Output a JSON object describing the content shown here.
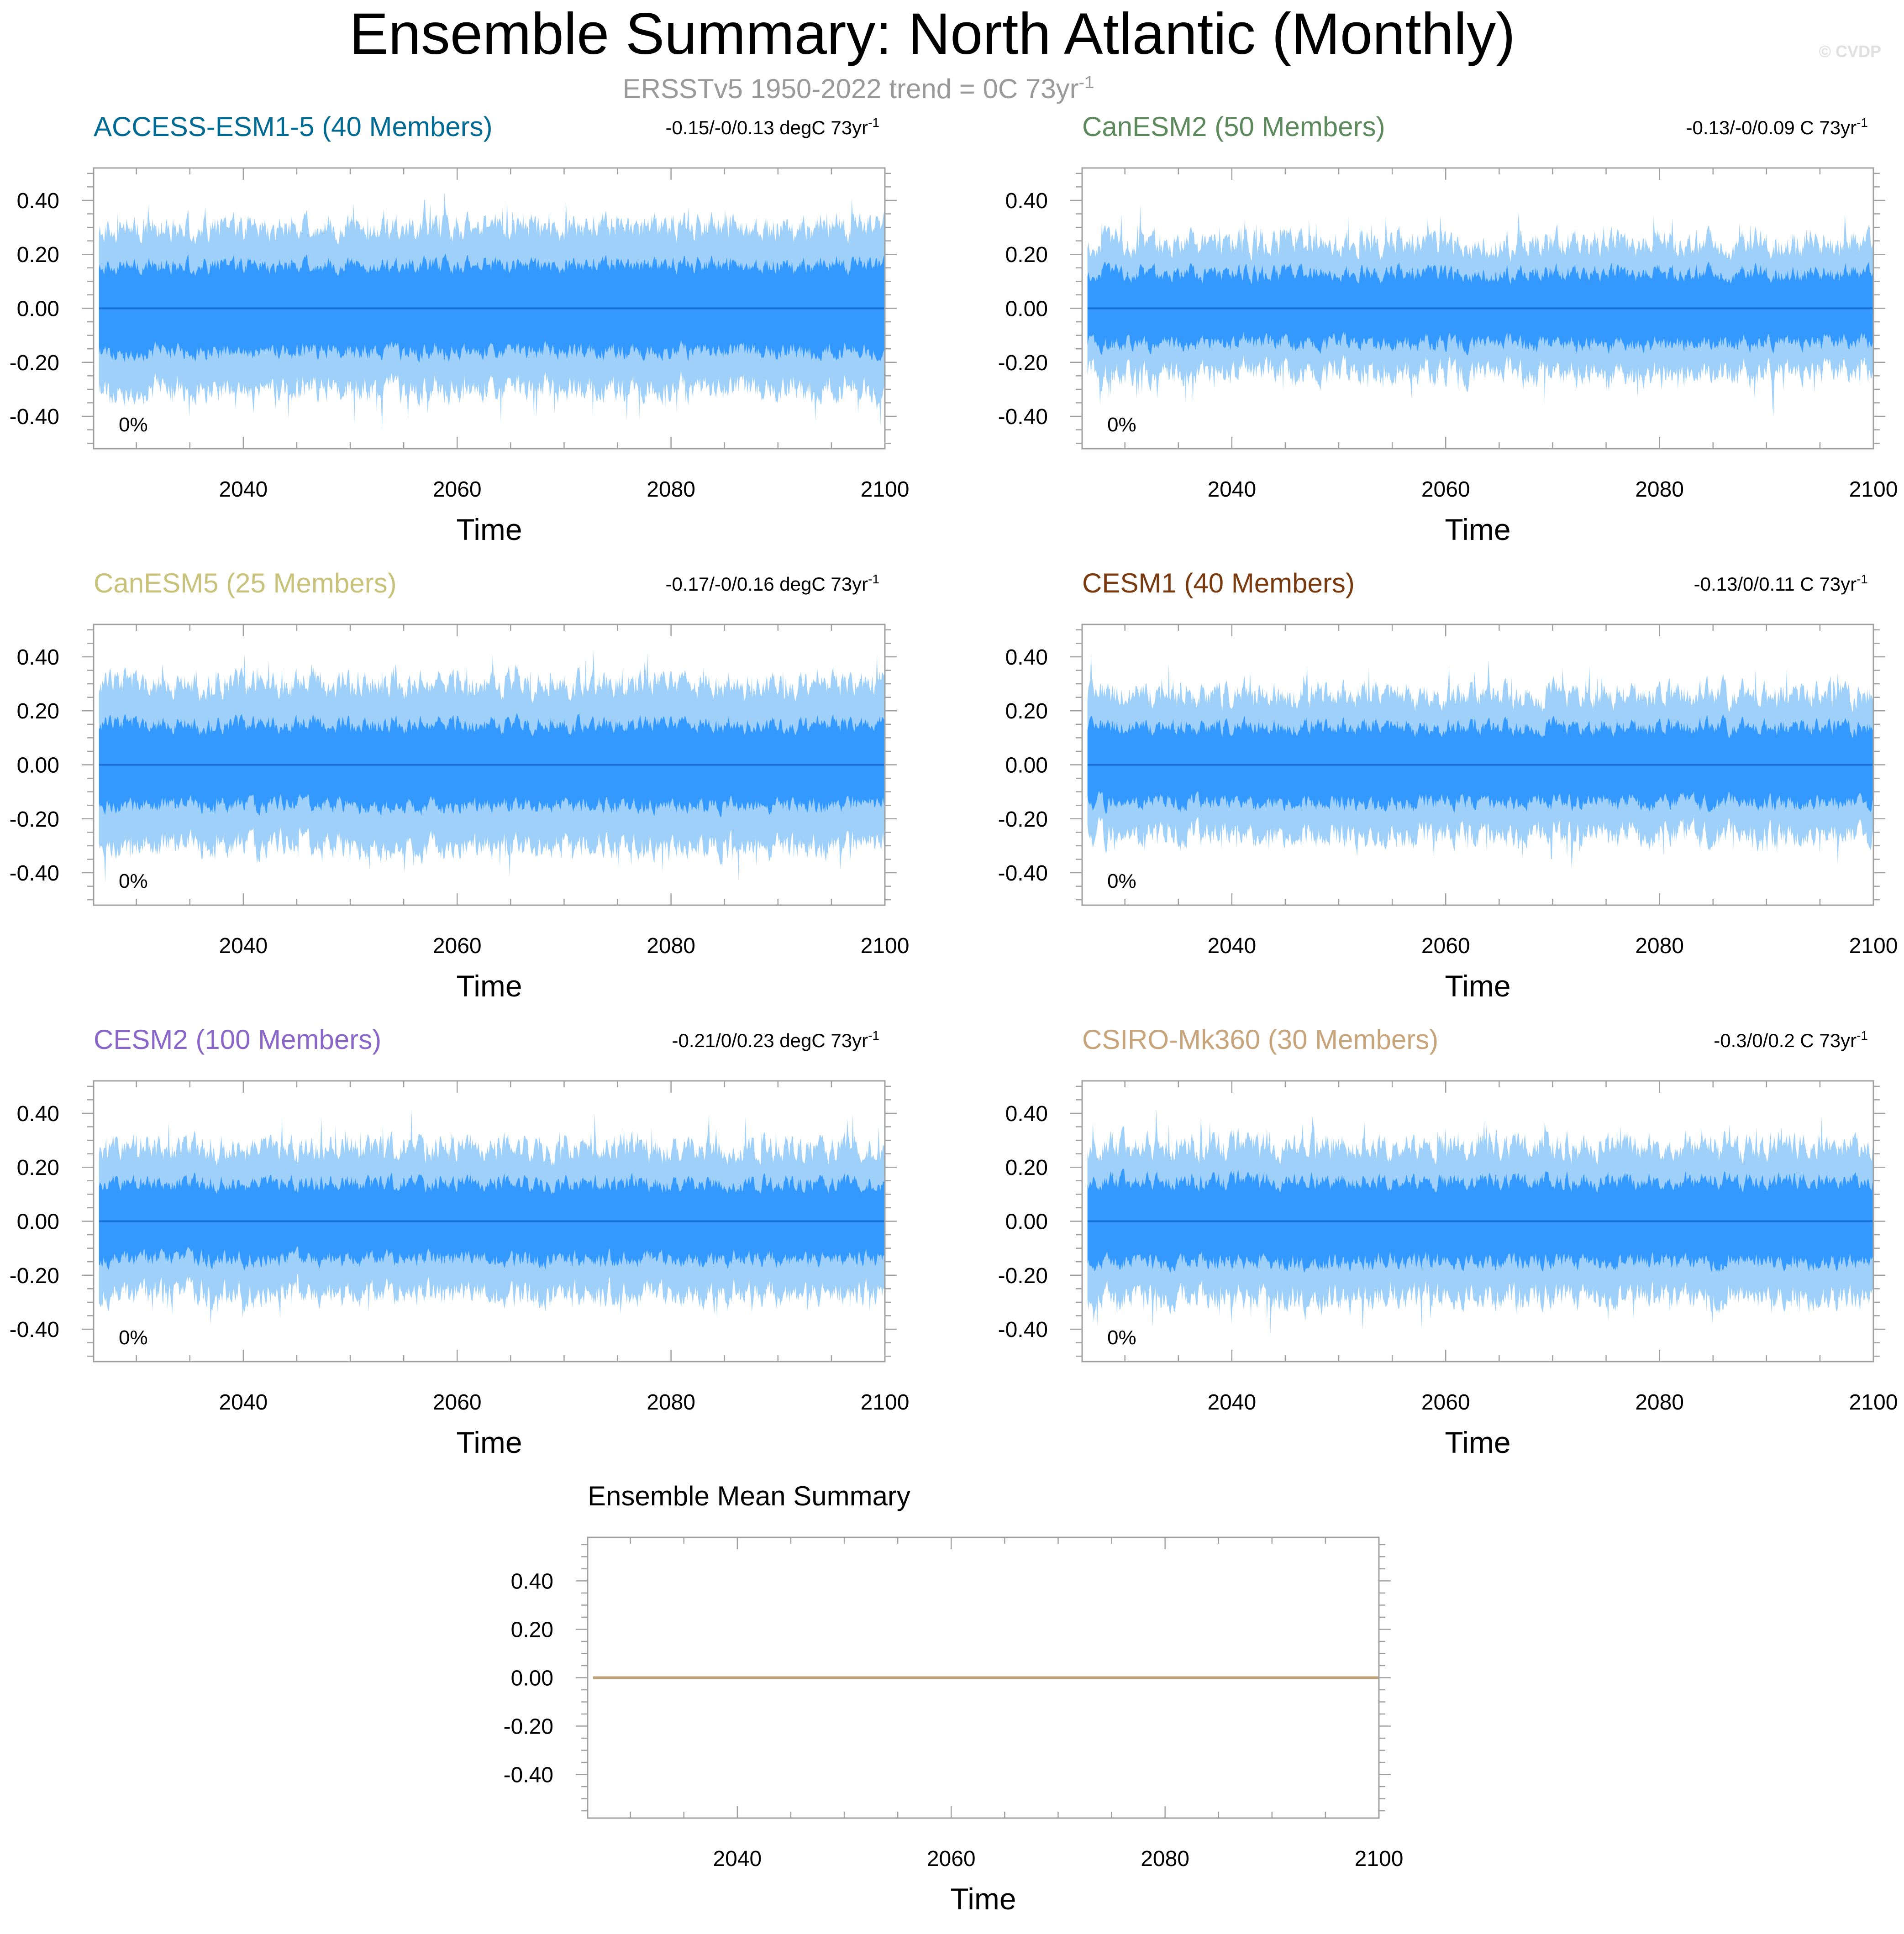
{
  "figure": {
    "title": "Ensemble Summary: North Atlantic (Monthly)",
    "subtitle": "ERSSTv5 1950-2022 trend = 0C 73yr",
    "subtitle_sup": "-1",
    "watermark": "© CVDP"
  },
  "colors": {
    "band_outer": "#9fd0fa",
    "band_inner": "#3399ff",
    "mean_line": "#1a6fd0",
    "ensemble_mean_line": "#bfa27a",
    "axis": "#a0a0a0",
    "text": "#000000",
    "subtitle": "#9a9a9a"
  },
  "chart_data": [
    {
      "type": "area",
      "title": "ACCESS-ESM1-5 (40 Members)",
      "title_color": "#006a92",
      "trend_label": "-0.15/-0/0.13 degC 73yr",
      "trend_sup": "-1",
      "pct_label": "0%",
      "xlabel": "Time",
      "xlim": [
        2026,
        2100
      ],
      "ylim": [
        -0.52,
        0.52
      ],
      "xticks": [
        2040,
        2060,
        2080,
        2100
      ],
      "yticks": [
        0.4,
        0.2,
        0.0,
        -0.2,
        -0.4
      ],
      "ytick_labels": [
        "0.40",
        "0.20",
        "0.00",
        "-0.20",
        "-0.40"
      ],
      "series": [
        {
          "name": "ensemble mean",
          "x": [
            2026.5,
            2100
          ],
          "values": [
            0,
            0
          ]
        },
        {
          "name": "inner spread (approx)",
          "lower": -0.16,
          "upper": 0.16
        },
        {
          "name": "outer spread (approx)",
          "lower": -0.3,
          "upper": 0.3
        }
      ],
      "seed": 11
    },
    {
      "type": "area",
      "title": "CanESM2 (50 Members)",
      "title_color": "#5c8a5c",
      "trend_label": "-0.13/-0/0.09 C 73yr",
      "trend_sup": "-1",
      "pct_label": "0%",
      "xlabel": "Time",
      "xlim": [
        2026,
        2100
      ],
      "ylim": [
        -0.52,
        0.52
      ],
      "xticks": [
        2040,
        2060,
        2080,
        2100
      ],
      "yticks": [
        0.4,
        0.2,
        0.0,
        -0.2,
        -0.4
      ],
      "ytick_labels": [
        "0.40",
        "0.20",
        "0.00",
        "-0.20",
        "-0.40"
      ],
      "series": [
        {
          "name": "ensemble mean",
          "x": [
            2026.5,
            2100
          ],
          "values": [
            0,
            0
          ]
        },
        {
          "name": "inner spread (approx)",
          "lower": -0.13,
          "upper": 0.13
        },
        {
          "name": "outer spread (approx)",
          "lower": -0.24,
          "upper": 0.24
        }
      ],
      "seed": 23
    },
    {
      "type": "area",
      "title": "CanESM5 (25 Members)",
      "title_color": "#c9c27a",
      "trend_label": "-0.17/-0/0.16 degC 73yr",
      "trend_sup": "-1",
      "pct_label": "0%",
      "xlabel": "Time",
      "xlim": [
        2026,
        2100
      ],
      "ylim": [
        -0.52,
        0.52
      ],
      "xticks": [
        2040,
        2060,
        2080,
        2100
      ],
      "yticks": [
        0.4,
        0.2,
        0.0,
        -0.2,
        -0.4
      ],
      "ytick_labels": [
        "0.40",
        "0.20",
        "0.00",
        "-0.20",
        "-0.40"
      ],
      "series": [
        {
          "name": "ensemble mean",
          "x": [
            2026.5,
            2100
          ],
          "values": [
            0,
            0
          ]
        },
        {
          "name": "inner spread (approx)",
          "lower": -0.15,
          "upper": 0.15
        },
        {
          "name": "outer spread (approx)",
          "lower": -0.3,
          "upper": 0.3
        }
      ],
      "seed": 37
    },
    {
      "type": "area",
      "title": "CESM1 (40 Members)",
      "title_color": "#7a3a10",
      "trend_label": "-0.13/0/0.11 C 73yr",
      "trend_sup": "-1",
      "pct_label": "0%",
      "xlabel": "Time",
      "xlim": [
        2026,
        2100
      ],
      "ylim": [
        -0.52,
        0.52
      ],
      "xticks": [
        2040,
        2060,
        2080,
        2100
      ],
      "yticks": [
        0.4,
        0.2,
        0.0,
        -0.2,
        -0.4
      ],
      "ytick_labels": [
        "0.40",
        "0.20",
        "0.00",
        "-0.20",
        "-0.40"
      ],
      "series": [
        {
          "name": "ensemble mean",
          "x": [
            2026.5,
            2100
          ],
          "values": [
            0,
            0
          ]
        },
        {
          "name": "inner spread (approx)",
          "lower": -0.14,
          "upper": 0.14
        },
        {
          "name": "outer spread (approx)",
          "lower": -0.26,
          "upper": 0.26
        }
      ],
      "seed": 41
    },
    {
      "type": "area",
      "title": "CESM2 (100 Members)",
      "title_color": "#8a66c8",
      "trend_label": "-0.21/0/0.23 degC 73yr",
      "trend_sup": "-1",
      "pct_label": "0%",
      "xlabel": "Time",
      "xlim": [
        2026,
        2100
      ],
      "ylim": [
        -0.52,
        0.52
      ],
      "xticks": [
        2040,
        2060,
        2080,
        2100
      ],
      "yticks": [
        0.4,
        0.2,
        0.0,
        -0.2,
        -0.4
      ],
      "ytick_labels": [
        "0.40",
        "0.20",
        "0.00",
        "-0.20",
        "-0.40"
      ],
      "series": [
        {
          "name": "ensemble mean",
          "x": [
            2026.5,
            2100
          ],
          "values": [
            0,
            0
          ]
        },
        {
          "name": "inner spread (approx)",
          "lower": -0.14,
          "upper": 0.14
        },
        {
          "name": "outer spread (approx)",
          "lower": -0.27,
          "upper": 0.27
        }
      ],
      "seed": 53
    },
    {
      "type": "area",
      "title": "CSIRO-Mk360 (30 Members)",
      "title_color": "#c8a47a",
      "trend_label": "-0.3/0/0.2 C 73yr",
      "trend_sup": "-1",
      "pct_label": "0%",
      "xlabel": "Time",
      "xlim": [
        2026,
        2100
      ],
      "ylim": [
        -0.52,
        0.52
      ],
      "xticks": [
        2040,
        2060,
        2080,
        2100
      ],
      "yticks": [
        0.4,
        0.2,
        0.0,
        -0.2,
        -0.4
      ],
      "ytick_labels": [
        "0.40",
        "0.20",
        "0.00",
        "-0.20",
        "-0.40"
      ],
      "series": [
        {
          "name": "ensemble mean",
          "x": [
            2026.5,
            2100
          ],
          "values": [
            0,
            0
          ]
        },
        {
          "name": "inner spread (approx)",
          "lower": -0.15,
          "upper": 0.15
        },
        {
          "name": "outer spread (approx)",
          "lower": -0.28,
          "upper": 0.28
        }
      ],
      "seed": 67
    },
    {
      "type": "line",
      "title": "Ensemble Mean Summary",
      "title_color": "#000000",
      "xlabel": "Time",
      "xlim": [
        2026,
        2100
      ],
      "ylim": [
        -0.58,
        0.58
      ],
      "xticks": [
        2040,
        2060,
        2080,
        2100
      ],
      "yticks": [
        0.4,
        0.2,
        0.0,
        -0.2,
        -0.4
      ],
      "ytick_labels": [
        "0.40",
        "0.20",
        "0.00",
        "-0.20",
        "-0.40"
      ],
      "series": [
        {
          "name": "ensemble mean (all models)",
          "x": [
            2026.5,
            2100
          ],
          "values": [
            0,
            0
          ]
        }
      ]
    }
  ]
}
